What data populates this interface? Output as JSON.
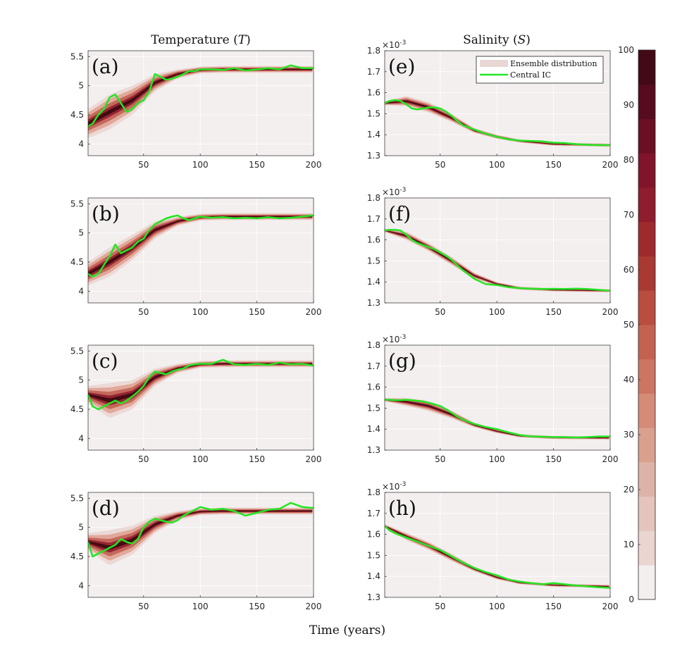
{
  "figure": {
    "xlabel": "Time (years)",
    "col_titles": {
      "temperature": "Temperature (",
      "temperature_sym": "T",
      "salinity": "Salinity (",
      "salinity_sym": "S",
      "close": ")"
    },
    "legend": {
      "ensemble": "Ensemble distribution",
      "central": "Central IC"
    },
    "colors": {
      "line": "#22e622",
      "background": "#f3efef",
      "band_dark": "#3e0a12",
      "band_mid": "#8c1a2a",
      "band_light": "#d8806a"
    },
    "colorbar": {
      "min": 0,
      "max": 100,
      "ticks": [
        "100",
        "90",
        "80",
        "70",
        "60",
        "50",
        "40",
        "30",
        "20",
        "10",
        "0"
      ],
      "colors": [
        "#f3efef",
        "#ead5d1",
        "#e4c4bd",
        "#deb3a7",
        "#d9a08e",
        "#d48b77",
        "#cc7562",
        "#c46251",
        "#b84d40",
        "#a93a33",
        "#9d2a2d",
        "#8e1d2d",
        "#7f142a",
        "#6a0f24",
        "#560b1e",
        "#420a17"
      ]
    },
    "sci_exponent": "×10",
    "sci_power": "-3"
  },
  "chart_data": [
    {
      "type": "line",
      "panel": "(a)",
      "variable": "Temperature",
      "xlim": [
        1,
        200
      ],
      "ylim": [
        3.8,
        5.6
      ],
      "xticks": [
        "50",
        "100",
        "150",
        "200"
      ],
      "yticks": [
        "4",
        "4.5",
        "5",
        "5.5"
      ],
      "ytick_values": [
        4,
        4.5,
        5,
        5.5
      ],
      "central_ic": {
        "x": [
          1,
          5,
          10,
          15,
          20,
          25,
          30,
          35,
          40,
          45,
          50,
          55,
          60,
          65,
          70,
          75,
          80,
          85,
          90,
          95,
          100,
          110,
          120,
          130,
          140,
          150,
          160,
          170,
          180,
          190,
          200
        ],
        "y": [
          4.3,
          4.35,
          4.5,
          4.6,
          4.8,
          4.85,
          4.7,
          4.55,
          4.6,
          4.7,
          4.75,
          4.9,
          5.2,
          5.15,
          5.1,
          5.12,
          5.15,
          5.2,
          5.25,
          5.25,
          5.28,
          5.28,
          5.27,
          5.3,
          5.26,
          5.28,
          5.3,
          5.28,
          5.35,
          5.3,
          5.3
        ]
      },
      "ensemble": {
        "x": [
          1,
          20,
          40,
          60,
          80,
          100,
          120,
          150,
          200
        ],
        "median": [
          4.35,
          4.55,
          4.75,
          5.05,
          5.2,
          5.27,
          5.28,
          5.28,
          5.28
        ],
        "spread": [
          0.25,
          0.3,
          0.25,
          0.15,
          0.08,
          0.06,
          0.06,
          0.06,
          0.06
        ]
      }
    },
    {
      "type": "line",
      "panel": "(b)",
      "variable": "Temperature",
      "xlim": [
        1,
        200
      ],
      "ylim": [
        3.8,
        5.6
      ],
      "xticks": [
        "50",
        "100",
        "150",
        "200"
      ],
      "yticks": [
        "4",
        "4.5",
        "5",
        "5.5"
      ],
      "ytick_values": [
        4,
        4.5,
        5,
        5.5
      ],
      "central_ic": {
        "x": [
          1,
          5,
          10,
          15,
          20,
          25,
          30,
          35,
          40,
          45,
          50,
          55,
          60,
          65,
          70,
          75,
          80,
          85,
          90,
          95,
          100,
          110,
          120,
          130,
          140,
          150,
          160,
          170,
          180,
          190,
          200
        ],
        "y": [
          4.3,
          4.25,
          4.3,
          4.45,
          4.6,
          4.8,
          4.65,
          4.7,
          4.75,
          4.85,
          4.9,
          5.05,
          5.15,
          5.2,
          5.25,
          5.28,
          5.3,
          5.25,
          5.22,
          5.25,
          5.28,
          5.26,
          5.27,
          5.25,
          5.26,
          5.25,
          5.27,
          5.25,
          5.26,
          5.28,
          5.3
        ]
      },
      "ensemble": {
        "x": [
          1,
          20,
          40,
          60,
          80,
          100,
          120,
          150,
          200
        ],
        "median": [
          4.3,
          4.5,
          4.75,
          5.05,
          5.2,
          5.27,
          5.28,
          5.28,
          5.28
        ],
        "spread": [
          0.2,
          0.25,
          0.22,
          0.15,
          0.08,
          0.06,
          0.06,
          0.06,
          0.06
        ]
      }
    },
    {
      "type": "line",
      "panel": "(c)",
      "variable": "Temperature",
      "xlim": [
        1,
        200
      ],
      "ylim": [
        3.8,
        5.6
      ],
      "xticks": [
        "50",
        "100",
        "150",
        "200"
      ],
      "yticks": [
        "4",
        "4.5",
        "5",
        "5.5"
      ],
      "ytick_values": [
        4,
        4.5,
        5,
        5.5
      ],
      "central_ic": {
        "x": [
          1,
          5,
          10,
          15,
          20,
          25,
          30,
          35,
          40,
          45,
          50,
          55,
          60,
          65,
          70,
          75,
          80,
          85,
          90,
          95,
          100,
          110,
          120,
          130,
          140,
          150,
          160,
          170,
          180,
          190,
          200
        ],
        "y": [
          4.75,
          4.55,
          4.5,
          4.55,
          4.6,
          4.65,
          4.6,
          4.65,
          4.72,
          4.8,
          4.9,
          5.05,
          5.15,
          5.12,
          5.1,
          5.15,
          5.18,
          5.2,
          5.25,
          5.27,
          5.28,
          5.28,
          5.35,
          5.27,
          5.26,
          5.28,
          5.26,
          5.3,
          5.27,
          5.28,
          5.25
        ]
      },
      "ensemble": {
        "x": [
          1,
          20,
          40,
          60,
          80,
          100,
          120,
          150,
          200
        ],
        "median": [
          4.75,
          4.65,
          4.75,
          5.05,
          5.2,
          5.27,
          5.28,
          5.28,
          5.28
        ],
        "spread": [
          0.15,
          0.3,
          0.25,
          0.15,
          0.08,
          0.06,
          0.06,
          0.06,
          0.06
        ]
      }
    },
    {
      "type": "line",
      "panel": "(d)",
      "variable": "Temperature",
      "xlim": [
        1,
        200
      ],
      "ylim": [
        3.8,
        5.6
      ],
      "xticks": [
        "50",
        "100",
        "150",
        "200"
      ],
      "yticks": [
        "4",
        "4.5",
        "5",
        "5.5"
      ],
      "ytick_values": [
        4,
        4.5,
        5,
        5.5
      ],
      "central_ic": {
        "x": [
          1,
          5,
          10,
          15,
          20,
          25,
          30,
          35,
          40,
          45,
          50,
          55,
          60,
          65,
          70,
          75,
          80,
          85,
          90,
          95,
          100,
          110,
          120,
          130,
          140,
          150,
          160,
          170,
          180,
          190,
          200
        ],
        "y": [
          4.75,
          4.5,
          4.55,
          4.6,
          4.65,
          4.7,
          4.8,
          4.75,
          4.72,
          4.8,
          5.0,
          5.1,
          5.15,
          5.12,
          5.1,
          5.08,
          5.12,
          5.2,
          5.25,
          5.3,
          5.35,
          5.3,
          5.32,
          5.28,
          5.2,
          5.25,
          5.3,
          5.32,
          5.42,
          5.35,
          5.33
        ]
      },
      "ensemble": {
        "x": [
          1,
          20,
          40,
          60,
          80,
          100,
          120,
          150,
          200
        ],
        "median": [
          4.75,
          4.65,
          4.78,
          5.05,
          5.2,
          5.27,
          5.28,
          5.28,
          5.28
        ],
        "spread": [
          0.15,
          0.3,
          0.25,
          0.15,
          0.08,
          0.06,
          0.06,
          0.06,
          0.06
        ]
      }
    },
    {
      "type": "line",
      "panel": "(e)",
      "variable": "Salinity",
      "xlim": [
        1,
        200
      ],
      "ylim": [
        1.3,
        1.8
      ],
      "xticks": [
        "50",
        "100",
        "150",
        "200"
      ],
      "yticks": [
        "1.3",
        "1.4",
        "1.5",
        "1.6",
        "1.7",
        "1.8"
      ],
      "ytick_values": [
        1.3,
        1.4,
        1.5,
        1.6,
        1.7,
        1.8
      ],
      "central_ic": {
        "x": [
          1,
          5,
          10,
          15,
          20,
          25,
          30,
          35,
          40,
          45,
          50,
          55,
          60,
          65,
          70,
          80,
          90,
          100,
          110,
          120,
          130,
          140,
          150,
          160,
          170,
          180,
          190,
          200
        ],
        "y": [
          1.55,
          1.56,
          1.565,
          1.56,
          1.545,
          1.525,
          1.52,
          1.525,
          1.53,
          1.53,
          1.525,
          1.51,
          1.49,
          1.465,
          1.445,
          1.425,
          1.405,
          1.39,
          1.378,
          1.372,
          1.37,
          1.368,
          1.362,
          1.36,
          1.355,
          1.352,
          1.35,
          1.35
        ]
      },
      "ensemble": {
        "x": [
          1,
          20,
          40,
          60,
          80,
          100,
          120,
          150,
          200
        ],
        "median": [
          1.55,
          1.56,
          1.53,
          1.48,
          1.42,
          1.39,
          1.37,
          1.355,
          1.35
        ],
        "spread": [
          0.01,
          0.025,
          0.025,
          0.02,
          0.012,
          0.01,
          0.008,
          0.008,
          0.008
        ]
      }
    },
    {
      "type": "line",
      "panel": "(f)",
      "variable": "Salinity",
      "xlim": [
        1,
        200
      ],
      "ylim": [
        1.3,
        1.8
      ],
      "xticks": [
        "50",
        "100",
        "150",
        "200"
      ],
      "yticks": [
        "1.3",
        "1.4",
        "1.5",
        "1.6",
        "1.7",
        "1.8"
      ],
      "ytick_values": [
        1.3,
        1.4,
        1.5,
        1.6,
        1.7,
        1.8
      ],
      "central_ic": {
        "x": [
          1,
          5,
          10,
          15,
          20,
          25,
          30,
          35,
          40,
          45,
          50,
          55,
          60,
          65,
          70,
          80,
          90,
          100,
          110,
          120,
          130,
          140,
          150,
          160,
          170,
          180,
          190,
          200
        ],
        "y": [
          1.645,
          1.648,
          1.648,
          1.645,
          1.625,
          1.6,
          1.585,
          1.575,
          1.565,
          1.555,
          1.54,
          1.525,
          1.505,
          1.48,
          1.455,
          1.415,
          1.39,
          1.385,
          1.375,
          1.37,
          1.368,
          1.366,
          1.367,
          1.366,
          1.368,
          1.366,
          1.362,
          1.358
        ]
      },
      "ensemble": {
        "x": [
          1,
          20,
          40,
          60,
          80,
          100,
          120,
          150,
          200
        ],
        "median": [
          1.645,
          1.62,
          1.565,
          1.5,
          1.43,
          1.39,
          1.37,
          1.362,
          1.358
        ],
        "spread": [
          0.008,
          0.02,
          0.02,
          0.02,
          0.015,
          0.01,
          0.008,
          0.008,
          0.008
        ]
      }
    },
    {
      "type": "line",
      "panel": "(g)",
      "variable": "Salinity",
      "xlim": [
        1,
        200
      ],
      "ylim": [
        1.3,
        1.8
      ],
      "xticks": [
        "50",
        "100",
        "150",
        "200"
      ],
      "yticks": [
        "1.3",
        "1.4",
        "1.5",
        "1.6",
        "1.7",
        "1.8"
      ],
      "ytick_values": [
        1.3,
        1.4,
        1.5,
        1.6,
        1.7,
        1.8
      ],
      "central_ic": {
        "x": [
          1,
          5,
          10,
          15,
          20,
          25,
          30,
          35,
          40,
          45,
          50,
          55,
          60,
          65,
          70,
          80,
          90,
          100,
          110,
          120,
          130,
          140,
          150,
          160,
          170,
          180,
          190,
          200
        ],
        "y": [
          1.54,
          1.54,
          1.538,
          1.538,
          1.54,
          1.538,
          1.535,
          1.532,
          1.525,
          1.518,
          1.51,
          1.495,
          1.478,
          1.46,
          1.445,
          1.425,
          1.41,
          1.4,
          1.385,
          1.372,
          1.365,
          1.364,
          1.362,
          1.362,
          1.36,
          1.362,
          1.365,
          1.365
        ]
      },
      "ensemble": {
        "x": [
          1,
          20,
          40,
          60,
          80,
          100,
          120,
          150,
          200
        ],
        "median": [
          1.54,
          1.53,
          1.51,
          1.47,
          1.42,
          1.39,
          1.368,
          1.36,
          1.358
        ],
        "spread": [
          0.008,
          0.02,
          0.025,
          0.02,
          0.012,
          0.01,
          0.008,
          0.008,
          0.008
        ]
      }
    },
    {
      "type": "line",
      "panel": "(h)",
      "variable": "Salinity",
      "xlim": [
        1,
        200
      ],
      "ylim": [
        1.3,
        1.8
      ],
      "xticks": [
        "50",
        "100",
        "150",
        "200"
      ],
      "yticks": [
        "1.3",
        "1.4",
        "1.5",
        "1.6",
        "1.7",
        "1.8"
      ],
      "ytick_values": [
        1.3,
        1.4,
        1.5,
        1.6,
        1.7,
        1.8
      ],
      "central_ic": {
        "x": [
          1,
          5,
          10,
          15,
          20,
          25,
          30,
          35,
          40,
          45,
          50,
          55,
          60,
          65,
          70,
          80,
          90,
          100,
          110,
          120,
          130,
          140,
          150,
          160,
          170,
          180,
          190,
          200
        ],
        "y": [
          1.64,
          1.62,
          1.605,
          1.595,
          1.585,
          1.575,
          1.565,
          1.555,
          1.545,
          1.535,
          1.525,
          1.51,
          1.495,
          1.48,
          1.465,
          1.44,
          1.42,
          1.405,
          1.385,
          1.375,
          1.368,
          1.362,
          1.368,
          1.362,
          1.356,
          1.352,
          1.348,
          1.345
        ]
      },
      "ensemble": {
        "x": [
          1,
          20,
          40,
          60,
          80,
          100,
          120,
          150,
          200
        ],
        "median": [
          1.64,
          1.59,
          1.545,
          1.49,
          1.435,
          1.395,
          1.37,
          1.358,
          1.352
        ],
        "spread": [
          0.008,
          0.018,
          0.02,
          0.018,
          0.012,
          0.01,
          0.008,
          0.008,
          0.008
        ]
      }
    }
  ]
}
